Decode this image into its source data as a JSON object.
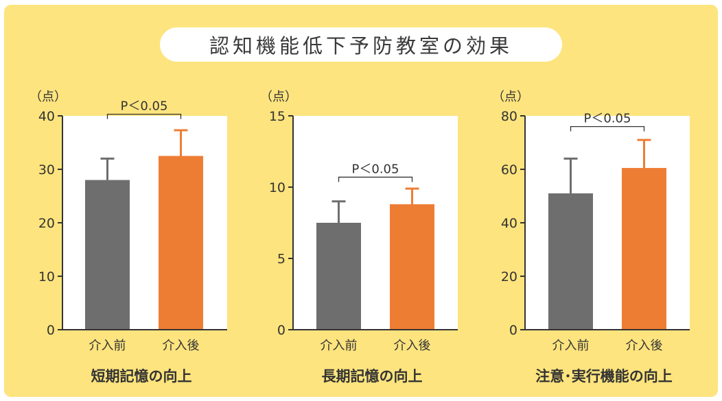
{
  "title": "認知機能低下予防教室の効果",
  "colors": {
    "background": "#fde47e",
    "plot_bg": "#ffffff",
    "before": "#6e6e6e",
    "after": "#ee7d34",
    "axis": "#333333"
  },
  "chart_data": [
    {
      "type": "bar",
      "caption": "短期記憶の向上",
      "unit": "（点）",
      "categories": [
        "介入前",
        "介入後"
      ],
      "values": [
        28,
        32.5
      ],
      "errors": [
        4,
        4.8
      ],
      "ylim": [
        0,
        40
      ],
      "yticks": [
        0,
        10,
        20,
        30,
        40
      ],
      "significance": "P＜0.05",
      "sig_level": 40.3
    },
    {
      "type": "bar",
      "caption": "長期記憶の向上",
      "unit": "（点）",
      "categories": [
        "介入前",
        "介入後"
      ],
      "values": [
        7.5,
        8.8
      ],
      "errors": [
        1.5,
        1.1
      ],
      "ylim": [
        0,
        15
      ],
      "yticks": [
        0,
        5,
        10,
        15
      ],
      "significance": "P＜0.05",
      "sig_level": 10.7
    },
    {
      "type": "bar",
      "caption": "注意･実行機能の向上",
      "unit": "（点）",
      "categories": [
        "介入前",
        "介入後"
      ],
      "values": [
        51,
        60.5
      ],
      "errors": [
        13,
        10.5
      ],
      "ylim": [
        0,
        80
      ],
      "yticks": [
        0,
        20,
        40,
        60,
        80
      ],
      "significance": "P＜0.05",
      "sig_level": 76
    }
  ]
}
